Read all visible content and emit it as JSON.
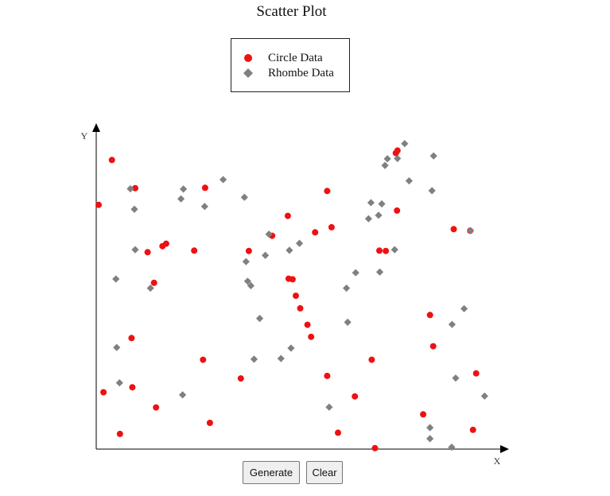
{
  "page": {
    "generate_label": "Generate",
    "clear_label": "Clear"
  },
  "colors": {
    "circle": "#ee1111",
    "rhombe": "#808080",
    "axis": "#000000"
  },
  "chart_data": {
    "type": "scatter",
    "title": "Scatter Plot",
    "xlabel": "X",
    "ylabel": "Y",
    "xlim": [
      0,
      100
    ],
    "ylim": [
      0,
      100
    ],
    "grid": false,
    "legend_position": "top-center",
    "series": [
      {
        "name": "Circle Data",
        "marker": "circle",
        "x": [
          0.6,
          3.9,
          1.8,
          8.8,
          9.0,
          14.9,
          5.9,
          9.7,
          12.8,
          14.4,
          16.5,
          17.4,
          24.4,
          27.1,
          26.6,
          28.3,
          36.0,
          38.0,
          43.8,
          47.7,
          47.9,
          48.9,
          50.8,
          49.7,
          52.6,
          53.5,
          54.5,
          57.5,
          58.6,
          57.5,
          60.2,
          64.4,
          68.6,
          69.4,
          72.1,
          74.9,
          74.6,
          75.0,
          70.5,
          81.4,
          83.9,
          83.1,
          89.0,
          93.8,
          93.1,
          94.6
        ],
        "y": [
          77.4,
          91.6,
          18.0,
          35.2,
          19.6,
          13.2,
          4.8,
          82.7,
          62.4,
          52.7,
          64.3,
          65.1,
          62.9,
          82.8,
          28.3,
          8.3,
          22.4,
          62.8,
          67.6,
          73.9,
          54.0,
          53.8,
          44.6,
          48.6,
          39.4,
          35.6,
          68.7,
          81.8,
          70.3,
          23.2,
          5.2,
          16.7,
          28.3,
          0.3,
          62.8,
          75.6,
          93.8,
          94.6,
          62.9,
          11.0,
          32.6,
          42.5,
          69.7,
          6.1,
          69.2,
          24.0
        ]
      },
      {
        "name": "Rhombe Data",
        "marker": "diamond",
        "x": [
          4.9,
          5.1,
          5.8,
          8.5,
          9.5,
          9.7,
          13.5,
          21.5,
          21.1,
          21.7,
          27.0,
          31.6,
          36.9,
          37.3,
          37.7,
          38.5,
          39.3,
          40.7,
          43.0,
          42.1,
          46.0,
          48.5,
          48.1,
          50.6,
          58.0,
          62.3,
          62.6,
          64.6,
          67.8,
          68.4,
          70.6,
          70.3,
          71.1,
          71.9,
          72.5,
          74.3,
          75.0,
          76.8,
          77.9,
          83.6,
          83.1,
          83.1,
          84.0,
          88.5,
          89.5,
          88.6,
          91.6,
          93.2,
          96.7
        ],
        "y": [
          53.9,
          32.2,
          21.0,
          82.5,
          76.0,
          63.2,
          51.0,
          17.2,
          79.3,
          82.4,
          76.9,
          85.4,
          79.8,
          59.4,
          53.2,
          51.8,
          28.5,
          41.4,
          68.1,
          61.4,
          28.7,
          32.0,
          63.0,
          65.2,
          13.3,
          51.0,
          40.2,
          55.9,
          73.0,
          78.1,
          56.1,
          74.1,
          77.7,
          89.9,
          92.0,
          63.2,
          92.1,
          96.8,
          85.0,
          81.9,
          3.3,
          6.8,
          92.9,
          0.6,
          22.5,
          39.5,
          44.5,
          69.2,
          16.8
        ]
      }
    ]
  }
}
